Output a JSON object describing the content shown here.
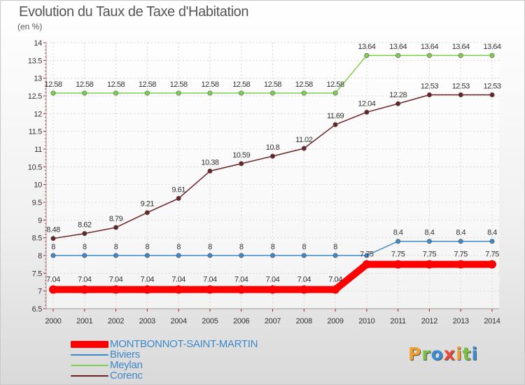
{
  "title": "Evolution du Taux de Taxe d'Habitation",
  "subtitle": "(en %)",
  "logo": {
    "text": "Proxiti",
    "letters": [
      {
        "ch": "P",
        "color": "#f0a030"
      },
      {
        "ch": "r",
        "color": "#7bc043"
      },
      {
        "ch": "o",
        "color": "#3a8ed8"
      },
      {
        "ch": "x",
        "color": "#e8493a"
      },
      {
        "ch": "i",
        "color": "#f0a030"
      },
      {
        "ch": "t",
        "color": "#7bc043"
      },
      {
        "ch": "i",
        "color": "#3a8ed8"
      }
    ]
  },
  "chart_data": {
    "type": "line",
    "title": "Evolution du Taux de Taxe d'Habitation",
    "subtitle": "(en %)",
    "x": [
      "2000",
      "2001",
      "2002",
      "2003",
      "2004",
      "2005",
      "2006",
      "2007",
      "2008",
      "2009",
      "2010",
      "2011",
      "2012",
      "2013",
      "2014"
    ],
    "ylim": [
      6.5,
      14
    ],
    "yticks": [
      "6.5",
      "7",
      "7.5",
      "8",
      "8.5",
      "9",
      "9.5",
      "10",
      "10.5",
      "11",
      "11.5",
      "12",
      "12.5",
      "13",
      "13.5",
      "14"
    ],
    "grid": true,
    "legend_position": "bottom-left",
    "series": [
      {
        "name": "MONTBONNOT-SAINT-MARTIN",
        "color": "#ff0000",
        "emphasis": true,
        "values": [
          7.04,
          7.04,
          7.04,
          7.04,
          7.04,
          7.04,
          7.04,
          7.04,
          7.04,
          7.04,
          7.75,
          7.75,
          7.75,
          7.75,
          7.75
        ],
        "labels": [
          "7.04",
          "7.04",
          "7.04",
          "7.04",
          "7.04",
          "7.04",
          "7.04",
          "7.04",
          "7.04",
          "7.04",
          "7.75",
          "7.75",
          "7.75",
          "7.75",
          "7.75"
        ]
      },
      {
        "name": "Biviers",
        "color": "#3f88c8",
        "emphasis": false,
        "values": [
          8,
          8,
          8,
          8,
          8,
          8,
          8,
          8,
          8,
          8,
          8,
          8.4,
          8.4,
          8.4,
          8.4
        ],
        "labels": [
          "8",
          "8",
          "8",
          "8",
          "8",
          "8",
          "8",
          "8",
          "8",
          "8",
          "",
          "8.4",
          "8.4",
          "8.4",
          "8.4"
        ]
      },
      {
        "name": "Meylan",
        "color": "#7cd04e",
        "emphasis": false,
        "values": [
          12.58,
          12.58,
          12.58,
          12.58,
          12.58,
          12.58,
          12.58,
          12.58,
          12.58,
          12.58,
          13.64,
          13.64,
          13.64,
          13.64,
          13.64
        ],
        "labels": [
          "12.58",
          "12.58",
          "12.58",
          "12.58",
          "12.58",
          "12.58",
          "12.58",
          "12.58",
          "12.58",
          "12.58",
          "13.64",
          "13.64",
          "13.64",
          "13.64",
          "13.64"
        ]
      },
      {
        "name": "Corenc",
        "color": "#6b2326",
        "emphasis": false,
        "values": [
          8.48,
          8.62,
          8.79,
          9.21,
          9.61,
          10.38,
          10.59,
          10.8,
          11.02,
          11.69,
          12.04,
          12.28,
          12.53,
          12.53,
          12.53
        ],
        "labels": [
          "8.48",
          "8.62",
          "8.79",
          "9.21",
          "9.61",
          "10.38",
          "10.59",
          "10.8",
          "11.02",
          "11.69",
          "12.04",
          "12.28",
          "12.53",
          "12.53",
          "12.53"
        ]
      }
    ]
  }
}
